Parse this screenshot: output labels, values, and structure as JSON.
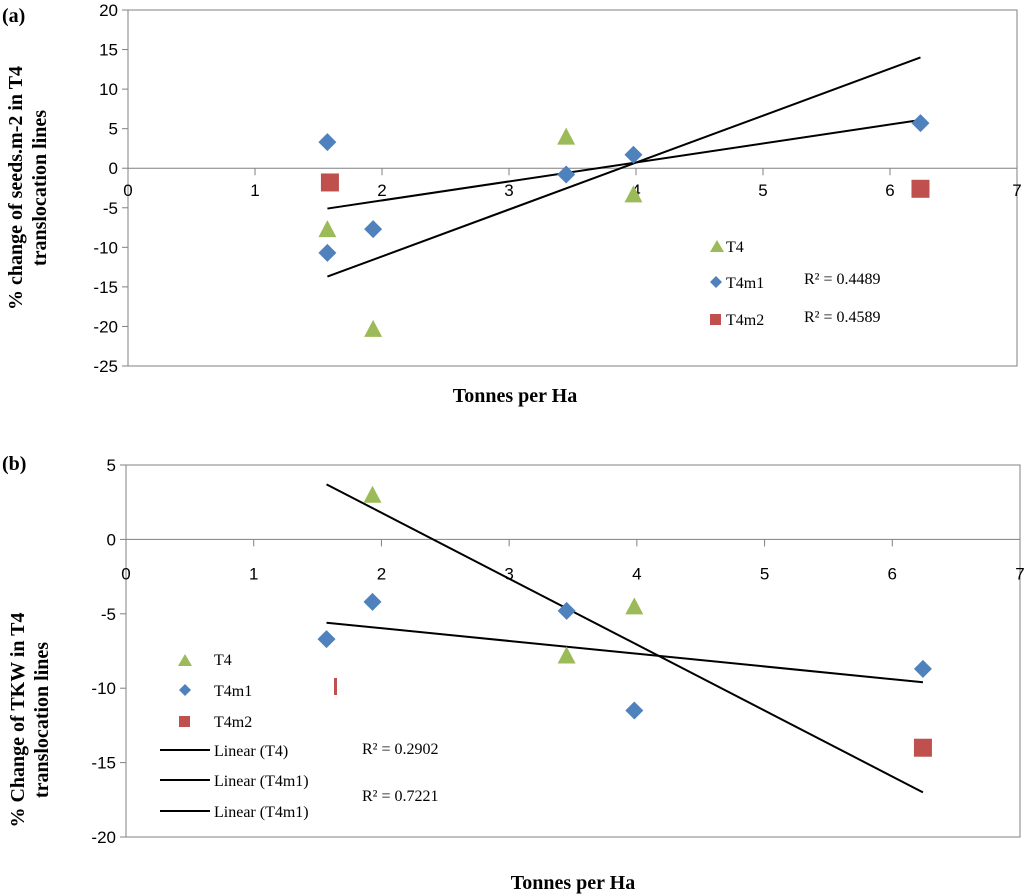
{
  "chart_data": [
    {
      "panel_label": "(a)",
      "type": "scatter",
      "xlabel": "Tonnes per Ha",
      "ylabel": [
        "% change of seeds.m-2 in T4",
        "translocation lines"
      ],
      "xlim": [
        0,
        7
      ],
      "ylim": [
        -25,
        20
      ],
      "xticks": [
        0,
        1,
        2,
        3,
        4,
        5,
        6,
        7
      ],
      "yticks": [
        -25,
        -20,
        -15,
        -10,
        -5,
        0,
        5,
        10,
        15,
        20
      ],
      "colors": {
        "T4": "#9BBB59",
        "T4m1": "#4F81BD",
        "T4m2": "#C0504D"
      },
      "series": [
        {
          "name": "T4",
          "marker": "triangle",
          "x": [
            1.57,
            1.93,
            3.45,
            3.98
          ],
          "y": [
            -7.7,
            -20.3,
            4.0,
            -3.3
          ]
        },
        {
          "name": "T4m1",
          "marker": "diamond",
          "x": [
            1.57,
            1.57,
            1.93,
            3.45,
            3.98,
            6.24
          ],
          "y": [
            3.3,
            -10.7,
            -7.7,
            -0.8,
            1.7,
            5.7
          ]
        },
        {
          "name": "T4m2",
          "marker": "square",
          "x": [
            1.59,
            6.24
          ],
          "y": [
            -1.8,
            -2.6
          ]
        }
      ],
      "trendlines": [
        {
          "x": [
            1.57,
            6.24
          ],
          "y": [
            -13.7,
            14.0
          ]
        },
        {
          "x": [
            1.57,
            6.24
          ],
          "y": [
            -5.1,
            6.1
          ]
        }
      ],
      "legend": [
        "T4",
        "T4m1",
        "T4m2"
      ],
      "annotations": [
        "R² = 0.4489",
        "R² = 0.4589"
      ]
    },
    {
      "panel_label": "(b)",
      "type": "scatter",
      "xlabel": "Tonnes per Ha",
      "ylabel": [
        "% Change of TKW in T4",
        "translocation lines"
      ],
      "xlim": [
        0,
        7
      ],
      "ylim": [
        -20,
        5
      ],
      "xticks": [
        0,
        1,
        2,
        3,
        4,
        5,
        6,
        7
      ],
      "yticks": [
        -20,
        -15,
        -10,
        -5,
        0,
        5
      ],
      "colors": {
        "T4": "#9BBB59",
        "T4m1": "#4F81BD",
        "T4m2": "#C0504D"
      },
      "series": [
        {
          "name": "T4",
          "marker": "triangle",
          "x": [
            1.93,
            3.45,
            3.98
          ],
          "y": [
            3.0,
            -7.8,
            -4.5
          ]
        },
        {
          "name": "T4m1",
          "marker": "diamond",
          "x": [
            1.57,
            1.93,
            3.45,
            3.98,
            6.24
          ],
          "y": [
            -6.7,
            -4.2,
            -4.8,
            -11.5,
            -8.7
          ]
        },
        {
          "name": "T4m2",
          "marker": "square",
          "x": [
            6.24
          ],
          "y": [
            -14.0
          ]
        }
      ],
      "trendlines": [
        {
          "x": [
            1.57,
            6.24
          ],
          "y": [
            3.7,
            -17.0
          ]
        },
        {
          "x": [
            1.57,
            6.24
          ],
          "y": [
            -5.6,
            -9.6
          ]
        }
      ],
      "legend": [
        "T4",
        "T4m1",
        "T4m2",
        "Linear (T4)",
        "Linear (T4m1)",
        "Linear (T4m1)"
      ],
      "annotations": [
        "R² = 0.2902",
        "R² = 0.7221"
      ]
    }
  ]
}
